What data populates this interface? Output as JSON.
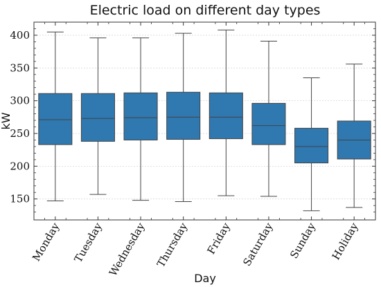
{
  "chart_data": {
    "type": "box",
    "title": "Electric load on different day types",
    "xlabel": "Day",
    "ylabel": "kW",
    "ylim": [
      118,
      420
    ],
    "yticks": [
      150,
      200,
      250,
      300,
      350,
      400
    ],
    "grid": true,
    "box_color": "#2f78b0",
    "categories": [
      "Monday",
      "Tuesday",
      "Wednesday",
      "Thursday",
      "Friday",
      "Saturday",
      "Sunday",
      "Holiday"
    ],
    "boxes": [
      {
        "whisker_low": 147,
        "q1": 233,
        "median": 271,
        "q3": 311,
        "whisker_high": 405
      },
      {
        "whisker_low": 157,
        "q1": 238,
        "median": 273,
        "q3": 311,
        "whisker_high": 396
      },
      {
        "whisker_low": 148,
        "q1": 240,
        "median": 274,
        "q3": 312,
        "whisker_high": 396
      },
      {
        "whisker_low": 146,
        "q1": 241,
        "median": 275,
        "q3": 313,
        "whisker_high": 403
      },
      {
        "whisker_low": 155,
        "q1": 242,
        "median": 275,
        "q3": 312,
        "whisker_high": 408
      },
      {
        "whisker_low": 154,
        "q1": 233,
        "median": 262,
        "q3": 296,
        "whisker_high": 391
      },
      {
        "whisker_low": 132,
        "q1": 205,
        "median": 230,
        "q3": 258,
        "whisker_high": 335
      },
      {
        "whisker_low": 137,
        "q1": 211,
        "median": 240,
        "q3": 269,
        "whisker_high": 356
      }
    ]
  }
}
